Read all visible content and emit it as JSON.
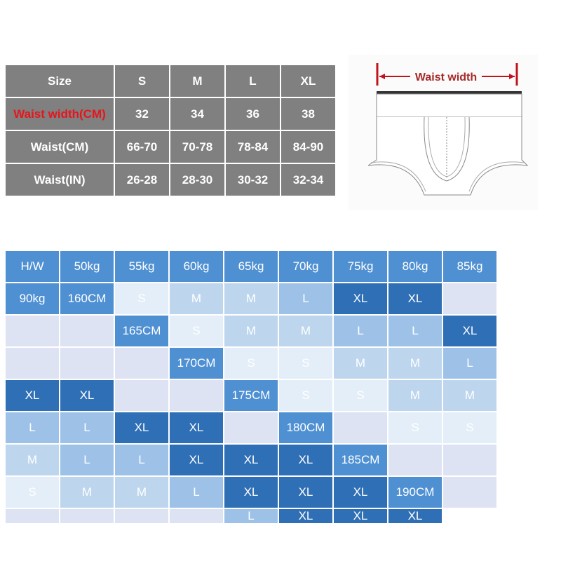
{
  "size_table": {
    "rows": [
      [
        "Size",
        "S",
        "M",
        "L",
        "XL"
      ],
      [
        "Waist width(CM)",
        "32",
        "34",
        "36",
        "38"
      ],
      [
        "Waist(CM)",
        "66-70",
        "70-78",
        "78-84",
        "84-90"
      ],
      [
        "Waist(IN)",
        "26-28",
        "28-30",
        "30-32",
        "32-34"
      ]
    ],
    "highlight_color": "#e8141c"
  },
  "diagram": {
    "label": "Waist width"
  },
  "fit_table": {
    "header": [
      "H/W",
      "50kg",
      "55kg",
      "60kg",
      "65kg",
      "70kg",
      "75kg",
      "80kg",
      "85kg",
      "90kg"
    ],
    "rows": [
      {
        "height": "160CM",
        "sizes": [
          "S",
          "M",
          "M",
          "L",
          "XL",
          "XL",
          "",
          "",
          ""
        ]
      },
      {
        "height": "165CM",
        "sizes": [
          "S",
          "M",
          "M",
          "L",
          "L",
          "XL",
          "",
          "",
          ""
        ]
      },
      {
        "height": "170CM",
        "sizes": [
          "S",
          "S",
          "M",
          "M",
          "L",
          "XL",
          "XL",
          "",
          ""
        ]
      },
      {
        "height": "175CM",
        "sizes": [
          "S",
          "S",
          "M",
          "M",
          "L",
          "L",
          "XL",
          "XL",
          ""
        ]
      },
      {
        "height": "180CM",
        "sizes": [
          "",
          "S",
          "S",
          "M",
          "L",
          "L",
          "XL",
          "XL",
          "XL"
        ]
      },
      {
        "height": "185CM",
        "sizes": [
          "",
          "",
          "S",
          "M",
          "M",
          "L",
          "XL",
          "XL",
          "XL"
        ]
      },
      {
        "height": "190CM",
        "sizes": [
          "",
          "",
          "",
          "",
          "",
          "L",
          "XL",
          "XL",
          "XL"
        ]
      }
    ],
    "colors": {
      "header": "#4f90d3",
      "S": "#e3eef8",
      "M": "#bdd6ee",
      "L": "#9ec2e7",
      "XL": "#2f6fb5",
      "empty": "#dde3f2"
    }
  }
}
